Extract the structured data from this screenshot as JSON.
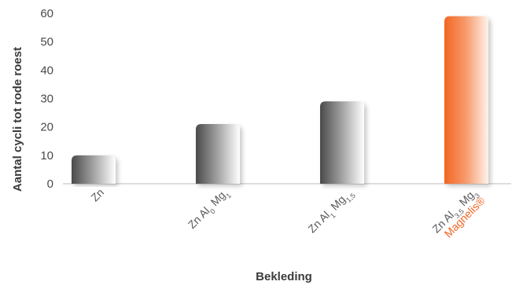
{
  "chart_data": {
    "type": "bar",
    "xlabel": "Bekleding",
    "ylabel": "Aantal cycli tot rode roest",
    "ylim": [
      0,
      60
    ],
    "yticks": [
      0,
      10,
      20,
      30,
      40,
      50,
      60
    ],
    "grid": false,
    "categories": [
      {
        "parts": [
          {
            "t": "Zn"
          }
        ],
        "sub": ""
      },
      {
        "parts": [
          {
            "t": "Zn Al"
          },
          {
            "t": "0",
            "s": 1
          },
          {
            "t": " Mg"
          },
          {
            "t": "1",
            "s": 1
          }
        ],
        "sub": ""
      },
      {
        "parts": [
          {
            "t": "Zn Al"
          },
          {
            "t": "1",
            "s": 1
          },
          {
            "t": " Mg"
          },
          {
            "t": "1,5",
            "s": 1
          }
        ],
        "sub": ""
      },
      {
        "parts": [
          {
            "t": "Zn Al"
          },
          {
            "t": "3,5",
            "s": 1
          },
          {
            "t": " Mg"
          },
          {
            "t": "3",
            "s": 1
          }
        ],
        "sub": "Magnelis®"
      }
    ],
    "values": [
      10,
      21,
      29,
      59
    ],
    "colors": {
      "gray_dark": "#4a4a4a",
      "gray_mid": "#9a9a9a",
      "gray_light": "#ffffff",
      "orange_dark": "#f26522",
      "orange_mid": "#f79c6e",
      "orange_light": "#fff3ec",
      "axis": "#bdbdbd"
    }
  }
}
